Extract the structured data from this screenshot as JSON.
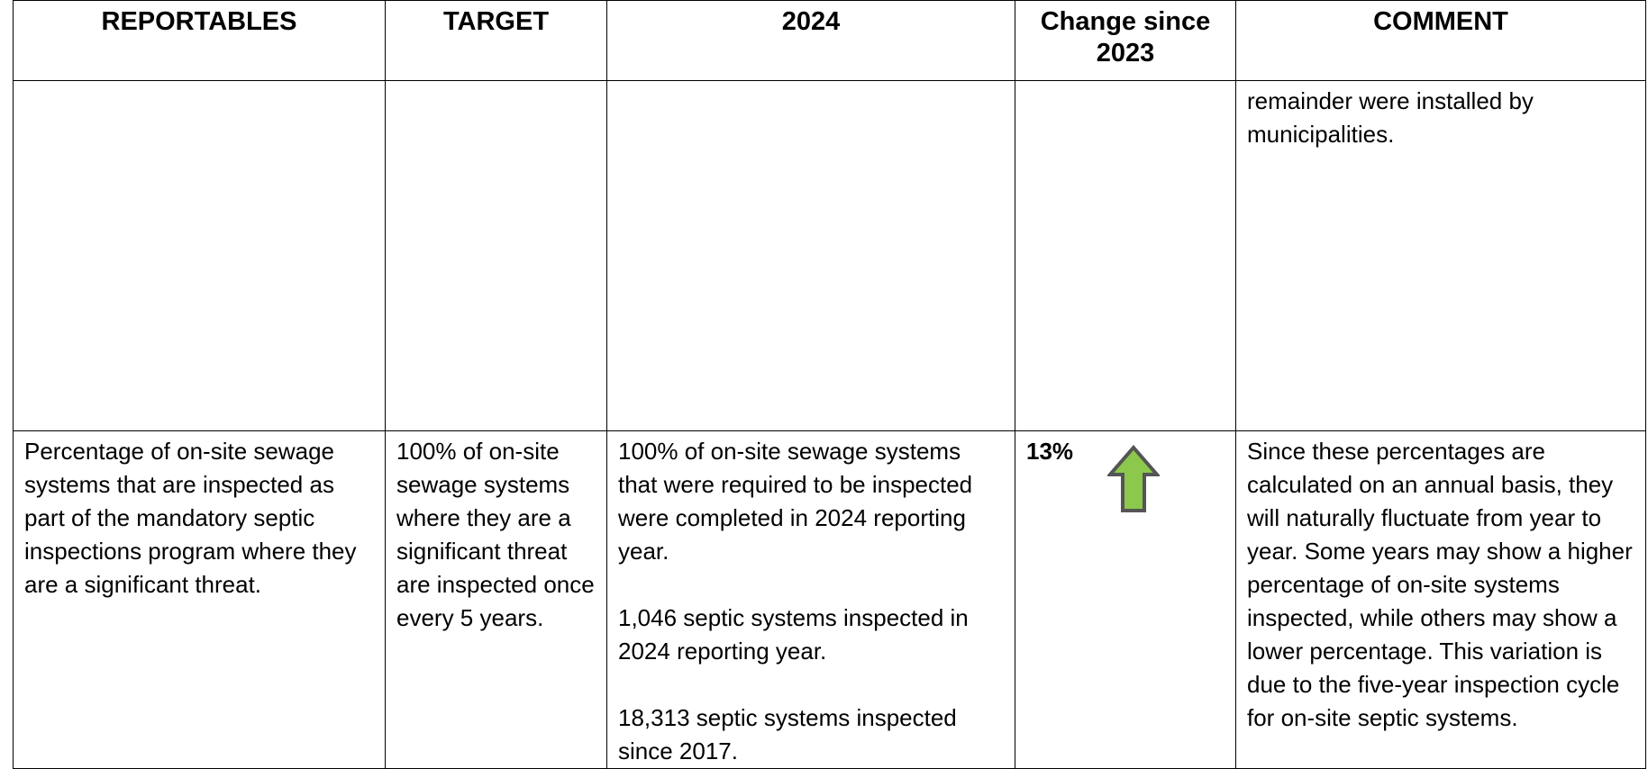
{
  "table": {
    "headers": [
      "REPORTABLES",
      "TARGET",
      "2024",
      "Change since 2023",
      "COMMENT"
    ],
    "rows": [
      [
        "",
        "",
        [
          ""
        ],
        "",
        "remainder were installed by municipalities."
      ],
      [
        "Percentage of on-site sewage systems that are inspected as part of the mandatory septic inspections program where they are a significant threat.",
        "100% of on-site sewage systems where they are a significant threat are inspected once every 5 years.",
        [
          "100% of on-site sewage systems that were required to be inspected were completed in 2024 reporting year.",
          "1,046 septic systems inspected in 2024 reporting year.",
          "18,313 septic systems inspected since 2017."
        ],
        "13%",
        "Since these percentages are calculated on an annual basis, they will naturally fluctuate from year to year. Some years may show a higher percentage of on-site systems inspected, while others may show a lower percentage. This variation is due to the five-year inspection cycle for on-site septic systems."
      ]
    ]
  }
}
